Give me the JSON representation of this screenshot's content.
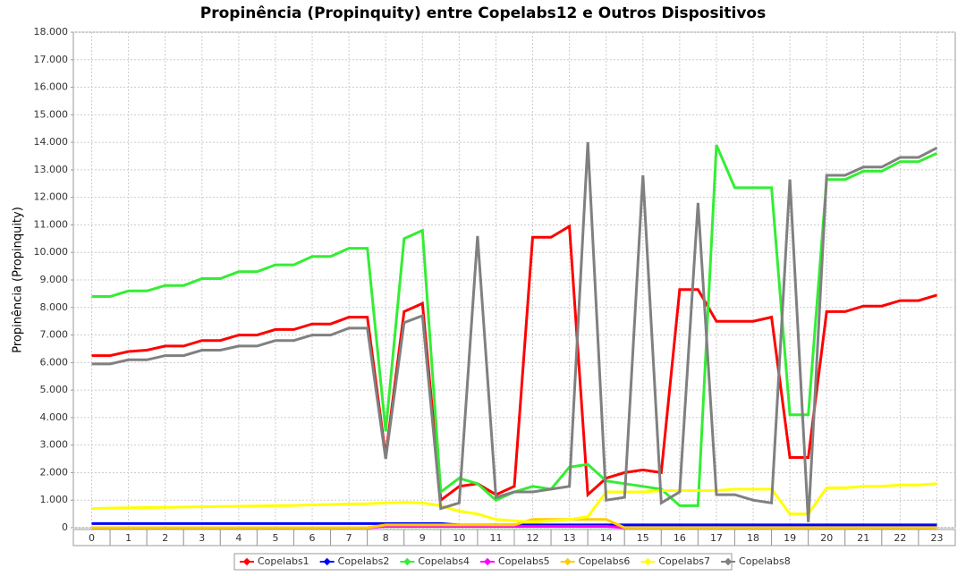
{
  "chart_data": {
    "type": "line",
    "title": "Propinência (Propinquity) entre Copelabs12 e Outros Dispositivos",
    "ylabel": "Propinência (Propinquity)",
    "x": [
      0,
      0.5,
      1,
      1.5,
      2,
      2.5,
      3,
      3.5,
      4,
      4.5,
      5,
      5.5,
      6,
      6.5,
      7,
      7.5,
      8,
      8.5,
      9,
      9.5,
      10,
      10.5,
      11,
      11.5,
      12,
      12.5,
      13,
      13.5,
      14,
      14.5,
      15,
      15.5,
      16,
      16.5,
      17,
      17.5,
      18,
      18.5,
      19,
      19.5,
      20,
      20.5,
      21,
      21.5,
      22,
      22.5,
      23
    ],
    "xlim": [
      -0.5,
      23.5
    ],
    "xticks": [
      0,
      1,
      2,
      3,
      4,
      5,
      6,
      7,
      8,
      9,
      10,
      11,
      12,
      13,
      14,
      15,
      16,
      17,
      18,
      19,
      20,
      21,
      22,
      23
    ],
    "ylim": [
      0,
      18000
    ],
    "yticks": [
      0,
      {
        "value": 1000,
        "label": "1.000"
      },
      {
        "value": 2000,
        "label": "2.000"
      },
      {
        "value": 3000,
        "label": "3.000"
      },
      {
        "value": 4000,
        "label": "4.000"
      },
      {
        "value": 5000,
        "label": "5.000"
      },
      {
        "value": 6000,
        "label": "6.000"
      },
      {
        "value": 7000,
        "label": "7.000"
      },
      {
        "value": 8000,
        "label": "8.000"
      },
      {
        "value": 9000,
        "label": "9.000"
      },
      {
        "value": 10000,
        "label": "10.000"
      },
      {
        "value": 11000,
        "label": "11.000"
      },
      {
        "value": 12000,
        "label": "12.000"
      },
      {
        "value": 13000,
        "label": "13.000"
      },
      {
        "value": 14000,
        "label": "14.000"
      },
      {
        "value": 15000,
        "label": "15.000"
      },
      {
        "value": 16000,
        "label": "16.000"
      },
      {
        "value": 17000,
        "label": "17.000"
      },
      {
        "value": 18000,
        "label": "18.000"
      }
    ],
    "grid": true,
    "legend": "bottom",
    "series": [
      {
        "name": "Copelabs1",
        "color": "#ff0000",
        "values": [
          6250,
          6250,
          6400,
          6450,
          6600,
          6600,
          6800,
          6800,
          7000,
          7000,
          7200,
          7200,
          7400,
          7400,
          7650,
          7650,
          2600,
          7850,
          8150,
          1000,
          1500,
          1600,
          1200,
          1500,
          10550,
          10550,
          10950,
          1200,
          1800,
          2000,
          2100,
          2000,
          8650,
          8650,
          7500,
          7500,
          7500,
          7650,
          2550,
          2550,
          7850,
          7850,
          8050,
          8050,
          8250,
          8250,
          8450
        ]
      },
      {
        "name": "Copelabs2",
        "color": "#0000ff",
        "values": [
          150,
          150,
          150,
          150,
          150,
          150,
          150,
          150,
          150,
          150,
          150,
          150,
          150,
          150,
          150,
          150,
          150,
          150,
          150,
          150,
          100,
          100,
          100,
          100,
          100,
          100,
          100,
          100,
          100,
          100,
          100,
          100,
          100,
          100,
          100,
          100,
          100,
          100,
          100,
          100,
          100,
          100,
          100,
          100,
          100,
          100,
          100
        ]
      },
      {
        "name": "Copelabs4",
        "color": "#33ee33",
        "values": [
          8400,
          8400,
          8600,
          8600,
          8800,
          8800,
          9050,
          9050,
          9300,
          9300,
          9550,
          9550,
          9850,
          9850,
          10150,
          10150,
          3500,
          10500,
          10800,
          1300,
          1800,
          1600,
          1000,
          1300,
          1500,
          1400,
          2200,
          2300,
          1700,
          1600,
          1500,
          1400,
          800,
          800,
          13900,
          12350,
          12350,
          12350,
          4100,
          4100,
          12650,
          12650,
          12950,
          12950,
          13300,
          13300,
          13600
        ]
      },
      {
        "name": "Copelabs5",
        "color": "#ff00ff",
        "values": [
          0,
          0,
          0,
          0,
          0,
          0,
          0,
          0,
          0,
          0,
          0,
          0,
          0,
          0,
          0,
          0,
          50,
          50,
          50,
          50,
          50,
          50,
          50,
          50,
          50,
          50,
          50,
          50,
          50,
          0,
          0,
          0,
          0,
          0,
          0,
          0,
          0,
          0,
          0,
          0,
          0,
          0,
          0,
          0,
          0,
          0,
          0
        ]
      },
      {
        "name": "Copelabs6",
        "color": "#ffcc00",
        "values": [
          0,
          0,
          0,
          0,
          0,
          0,
          0,
          0,
          0,
          0,
          0,
          0,
          0,
          0,
          0,
          0,
          100,
          100,
          100,
          100,
          100,
          100,
          100,
          100,
          300,
          300,
          300,
          300,
          300,
          0,
          0,
          0,
          0,
          0,
          0,
          0,
          0,
          0,
          0,
          0,
          0,
          0,
          0,
          0,
          0,
          0,
          0
        ]
      },
      {
        "name": "Copelabs7",
        "color": "#ffff00",
        "values": [
          700,
          710,
          720,
          730,
          740,
          750,
          760,
          770,
          780,
          790,
          800,
          810,
          830,
          840,
          860,
          870,
          900,
          920,
          900,
          800,
          600,
          500,
          300,
          250,
          200,
          250,
          300,
          400,
          1300,
          1300,
          1300,
          1350,
          1350,
          1350,
          1350,
          1400,
          1400,
          1400,
          500,
          500,
          1450,
          1450,
          1500,
          1500,
          1550,
          1550,
          1600
        ]
      },
      {
        "name": "Copelabs8",
        "color": "#808080",
        "values": [
          5950,
          5950,
          6100,
          6100,
          6250,
          6250,
          6450,
          6450,
          6600,
          6600,
          6800,
          6800,
          7000,
          7000,
          7250,
          7250,
          2500,
          7450,
          7700,
          700,
          900,
          10600,
          1100,
          1300,
          1300,
          1400,
          1500,
          14000,
          1000,
          1100,
          12800,
          900,
          1300,
          11800,
          1200,
          1200,
          1000,
          900,
          12650,
          200,
          12800,
          12800,
          13100,
          13100,
          13450,
          13450,
          13800
        ]
      }
    ]
  }
}
